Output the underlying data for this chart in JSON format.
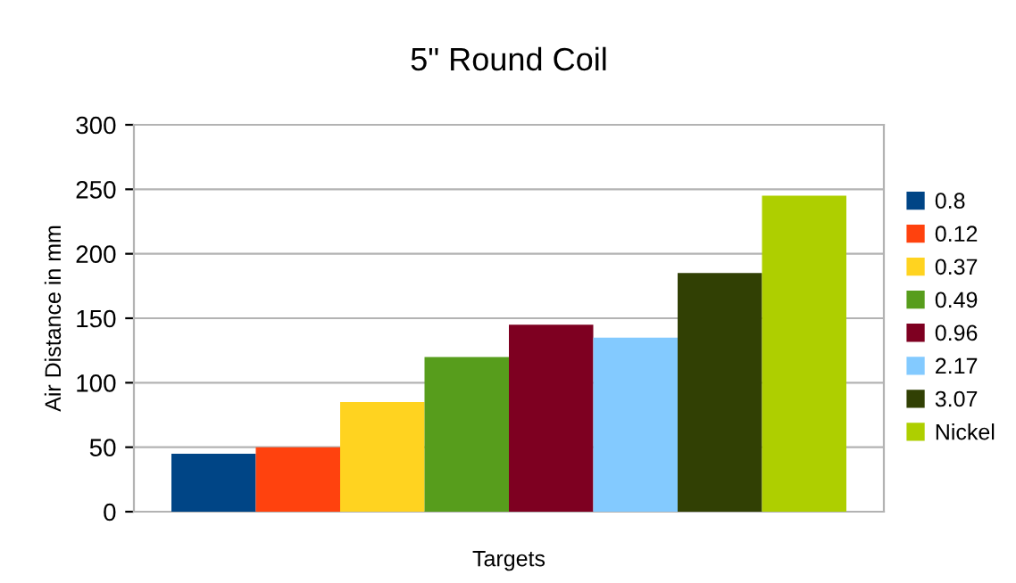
{
  "chart_data": {
    "type": "bar",
    "title": "5\" Round Coil",
    "xlabel": "Targets",
    "ylabel": "Air Distance in mm",
    "categories": [
      null
    ],
    "series": [
      {
        "name": "0.8",
        "color": "#004586",
        "values": [
          45
        ]
      },
      {
        "name": "0.12",
        "color": "#ff420e",
        "values": [
          50
        ]
      },
      {
        "name": "0.37",
        "color": "#ffd320",
        "values": [
          85
        ]
      },
      {
        "name": "0.49",
        "color": "#579d1c",
        "values": [
          120
        ]
      },
      {
        "name": "0.96",
        "color": "#7e0021",
        "values": [
          145
        ]
      },
      {
        "name": "2.17",
        "color": "#83caff",
        "values": [
          135
        ]
      },
      {
        "name": "3.07",
        "color": "#314004",
        "values": [
          185
        ]
      },
      {
        "name": "Nickel",
        "color": "#aecf00",
        "values": [
          245
        ]
      }
    ],
    "ylim": [
      0,
      300
    ],
    "yticks": [
      0,
      50,
      100,
      150,
      200,
      250,
      300
    ],
    "grid": "y",
    "legend": "right"
  }
}
